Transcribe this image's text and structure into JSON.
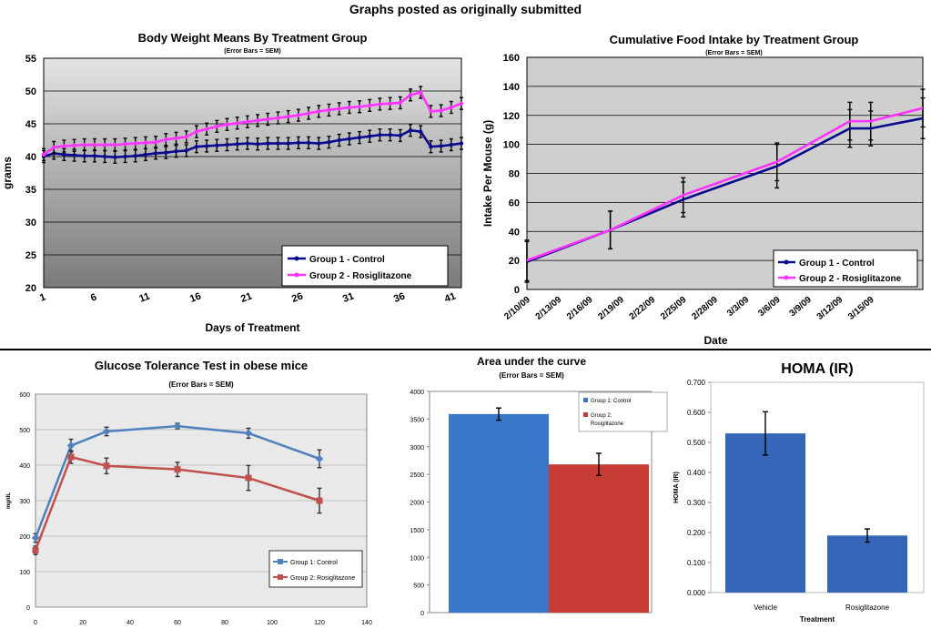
{
  "page_title": "Graphs posted as originally submitted",
  "chart_data": [
    {
      "type": "line",
      "title": "Body Weight Means By Treatment Group",
      "subtitle": "(Error Bars = SEM)",
      "xlabel": "Days of Treatment",
      "ylabel": "grams",
      "ylim": [
        20,
        55
      ],
      "yticks": [
        20,
        25,
        30,
        35,
        40,
        45,
        50,
        55
      ],
      "xlim": [
        1,
        42
      ],
      "xticks": [
        1,
        6,
        11,
        16,
        21,
        26,
        31,
        36,
        41
      ],
      "legend_position": "bottom-right",
      "grid": true,
      "series": [
        {
          "name": "Group 1 - Control",
          "color": "#0a0a8c",
          "x": [
            1,
            2,
            3,
            4,
            5,
            6,
            7,
            8,
            9,
            10,
            11,
            12,
            13,
            14,
            15,
            16,
            17,
            18,
            19,
            20,
            21,
            22,
            23,
            24,
            25,
            26,
            27,
            28,
            29,
            30,
            31,
            32,
            33,
            34,
            35,
            36,
            37,
            38,
            39,
            40,
            41,
            42
          ],
          "values": [
            40,
            40.5,
            40.3,
            40.2,
            40.1,
            40.1,
            40.0,
            39.9,
            40.0,
            40.1,
            40.3,
            40.5,
            40.6,
            40.8,
            40.9,
            41.5,
            41.6,
            41.7,
            41.8,
            41.9,
            42.0,
            41.9,
            42.0,
            42.0,
            42.0,
            42.1,
            42.1,
            42.0,
            42.2,
            42.5,
            42.7,
            42.9,
            43.1,
            43.3,
            43.3,
            43.2,
            44.0,
            43.8,
            41.5,
            41.6,
            41.8,
            42.0
          ],
          "error": 0.9
        },
        {
          "name": "Group 2 - Rosiglitazone",
          "color": "#ff33ff",
          "x": [
            1,
            2,
            3,
            4,
            5,
            6,
            7,
            8,
            9,
            10,
            11,
            12,
            13,
            14,
            15,
            16,
            17,
            18,
            19,
            20,
            21,
            22,
            23,
            24,
            25,
            26,
            27,
            28,
            29,
            30,
            31,
            32,
            33,
            34,
            35,
            36,
            37,
            38,
            39,
            40,
            41,
            42
          ],
          "values": [
            40.3,
            41.4,
            41.6,
            41.7,
            41.8,
            41.8,
            41.8,
            41.8,
            41.9,
            42.0,
            42.1,
            42.2,
            42.6,
            42.8,
            43.0,
            43.8,
            44.2,
            44.6,
            44.9,
            45.1,
            45.3,
            45.5,
            45.7,
            45.9,
            46.1,
            46.3,
            46.6,
            46.9,
            47.1,
            47.3,
            47.5,
            47.6,
            47.8,
            48.0,
            48.1,
            48.2,
            49.4,
            49.8,
            46.9,
            47.0,
            47.5,
            48.1
          ],
          "error": 0.9
        }
      ]
    },
    {
      "type": "line",
      "title": "Cumulative Food Intake by Treatment Group",
      "subtitle": "(Error Bars = SEM)",
      "xlabel": "Date",
      "ylabel": "Intake Per Mouse (g)",
      "ylim": [
        0,
        160
      ],
      "yticks": [
        0,
        20,
        40,
        60,
        80,
        100,
        120,
        140,
        160
      ],
      "xlim": [
        0,
        38
      ],
      "xtick_positions": [
        0,
        3,
        6,
        9,
        12,
        15,
        18,
        21,
        24,
        27,
        30,
        33
      ],
      "xtick_labels": [
        "2/10/09",
        "2/13/09",
        "2/16/09",
        "2/19/09",
        "2/22/09",
        "2/25/09",
        "2/28/09",
        "3/3/09",
        "3/6/09",
        "3/9/09",
        "3/12/09",
        "3/15/09"
      ],
      "legend_position": "bottom-right",
      "grid": true,
      "series": [
        {
          "name": "Group 1 - Control",
          "color": "#0a0a8c",
          "x": [
            0,
            8,
            15,
            24,
            31,
            33,
            38
          ],
          "x_labels": [
            "2/10/09",
            "2/18/09",
            "2/25/09",
            "3/6/09",
            "3/13/09",
            "3/15/09",
            "3/20/09"
          ],
          "values": [
            19,
            41,
            62,
            85,
            111,
            111,
            118
          ],
          "errors": [
            14,
            13,
            12,
            15,
            13,
            12,
            14
          ]
        },
        {
          "name": "Group 2 - Rosiglitazone",
          "color": "#ff33ff",
          "x": [
            0,
            8,
            15,
            24,
            31,
            33,
            38
          ],
          "x_labels": [
            "2/10/09",
            "2/18/09",
            "2/25/09",
            "3/6/09",
            "3/13/09",
            "3/15/09",
            "3/20/09"
          ],
          "values": [
            20,
            41,
            65,
            88,
            116,
            116,
            125
          ],
          "errors": [
            14,
            13,
            12,
            13,
            13,
            13,
            13
          ]
        }
      ]
    },
    {
      "type": "line",
      "title": "Glucose Tolerance Test in obese mice",
      "subtitle": "(Error Bars = SEM)",
      "xlabel": "",
      "ylabel": "mg/dL",
      "ylim": [
        0,
        600
      ],
      "yticks": [
        0,
        100,
        200,
        300,
        400,
        500,
        600
      ],
      "xlim": [
        0,
        140
      ],
      "xticks": [
        0,
        20,
        40,
        60,
        80,
        100,
        120,
        140
      ],
      "legend_position": "bottom-right",
      "grid": true,
      "series": [
        {
          "name": "Group 1: Control",
          "color": "#4f81bd",
          "x": [
            0,
            15,
            30,
            60,
            90,
            120
          ],
          "values": [
            195,
            455,
            495,
            510,
            490,
            418
          ],
          "errors": [
            12,
            18,
            12,
            8,
            14,
            25
          ]
        },
        {
          "name": "Group 2: Rosiglitazone",
          "color": "#c0504d",
          "x": [
            0,
            15,
            30,
            60,
            90,
            120
          ],
          "values": [
            160,
            423,
            398,
            388,
            364,
            300
          ],
          "errors": [
            12,
            18,
            22,
            20,
            35,
            35
          ]
        }
      ]
    },
    {
      "type": "bar",
      "title": "Area under the curve",
      "subtitle": "(Error Bars = SEM)",
      "ylim": [
        0,
        4000
      ],
      "yticks": [
        0,
        500,
        1000,
        1500,
        2000,
        2500,
        3000,
        3500,
        4000
      ],
      "categories": [
        "Group 1: Control",
        "Group 2: Rosiglitazone"
      ],
      "legend_position": "top-right",
      "series": [
        {
          "name": "Group 1: Control",
          "color": "#3a76c8",
          "value": 3590,
          "error": 110
        },
        {
          "name": "Group 2: Rosiglitazone",
          "color": "#c63c35",
          "value": 2680,
          "error": 200
        }
      ]
    },
    {
      "type": "bar",
      "title": "HOMA (IR)",
      "xlabel": "Treatment",
      "ylabel": "HOMA (IR)",
      "ylim": [
        0,
        0.7
      ],
      "yticks": [
        "0.000",
        "0.100",
        "0.200",
        "0.300",
        "0.400",
        "0.500",
        "0.600",
        "0.700"
      ],
      "categories": [
        "Vehicle",
        "Rosiglitazone"
      ],
      "values": [
        0.53,
        0.19
      ],
      "errors": [
        0.072,
        0.022
      ],
      "color": "#3566b8"
    }
  ]
}
